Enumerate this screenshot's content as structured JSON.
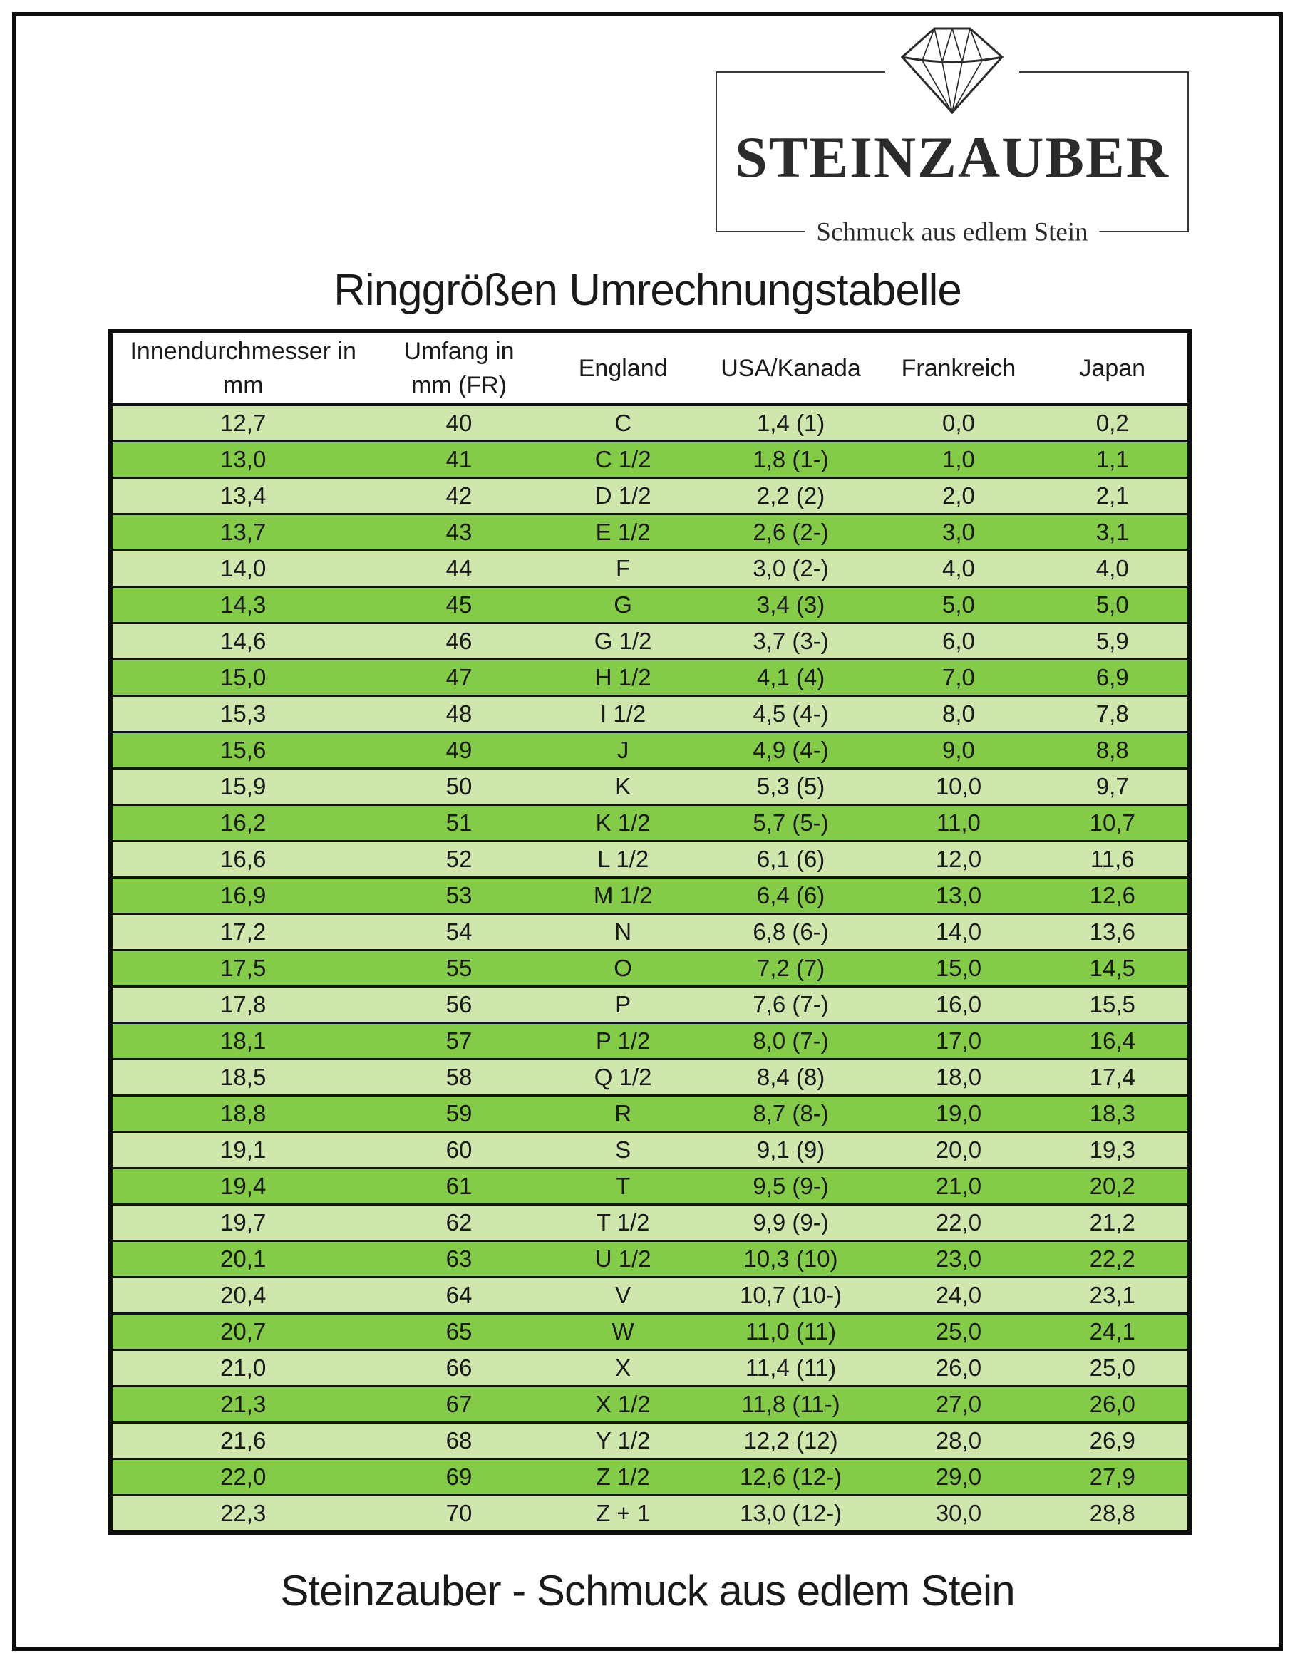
{
  "logo": {
    "brand": "STEINZAUBER",
    "tagline": "Schmuck aus edlem Stein"
  },
  "page": {
    "title": "Ringgrößen Umrechnungstabelle",
    "footer": "Steinzauber - Schmuck aus edlem Stein"
  },
  "colors": {
    "row_light": "#cfe6ad",
    "row_dark": "#84cb48",
    "table_border": "#0e0e0e"
  },
  "table": {
    "headers": [
      {
        "line1": "Innendurchmesser in",
        "line2": "mm"
      },
      {
        "line1": "Umfang in",
        "line2": "mm (FR)"
      },
      {
        "line1": "England"
      },
      {
        "line1": "USA/Kanada"
      },
      {
        "line1": "Frankreich"
      },
      {
        "line1": "Japan"
      }
    ],
    "rows": [
      [
        "12,7",
        "40",
        "C",
        "1,4 (1)",
        "0,0",
        "0,2"
      ],
      [
        "13,0",
        "41",
        "C 1/2",
        "1,8 (1-)",
        "1,0",
        "1,1"
      ],
      [
        "13,4",
        "42",
        "D 1/2",
        "2,2 (2)",
        "2,0",
        "2,1"
      ],
      [
        "13,7",
        "43",
        "E 1/2",
        "2,6 (2-)",
        "3,0",
        "3,1"
      ],
      [
        "14,0",
        "44",
        "F",
        "3,0 (2-)",
        "4,0",
        "4,0"
      ],
      [
        "14,3",
        "45",
        "G",
        "3,4 (3)",
        "5,0",
        "5,0"
      ],
      [
        "14,6",
        "46",
        "G 1/2",
        "3,7 (3-)",
        "6,0",
        "5,9"
      ],
      [
        "15,0",
        "47",
        "H 1/2",
        "4,1 (4)",
        "7,0",
        "6,9"
      ],
      [
        "15,3",
        "48",
        "I 1/2",
        "4,5 (4-)",
        "8,0",
        "7,8"
      ],
      [
        "15,6",
        "49",
        "J",
        "4,9 (4-)",
        "9,0",
        "8,8"
      ],
      [
        "15,9",
        "50",
        "K",
        "5,3 (5)",
        "10,0",
        "9,7"
      ],
      [
        "16,2",
        "51",
        "K 1/2",
        "5,7 (5-)",
        "11,0",
        "10,7"
      ],
      [
        "16,6",
        "52",
        "L 1/2",
        "6,1 (6)",
        "12,0",
        "11,6"
      ],
      [
        "16,9",
        "53",
        "M 1/2",
        "6,4 (6)",
        "13,0",
        "12,6"
      ],
      [
        "17,2",
        "54",
        "N",
        "6,8 (6-)",
        "14,0",
        "13,6"
      ],
      [
        "17,5",
        "55",
        "O",
        "7,2 (7)",
        "15,0",
        "14,5"
      ],
      [
        "17,8",
        "56",
        "P",
        "7,6 (7-)",
        "16,0",
        "15,5"
      ],
      [
        "18,1",
        "57",
        "P 1/2",
        "8,0 (7-)",
        "17,0",
        "16,4"
      ],
      [
        "18,5",
        "58",
        "Q 1/2",
        "8,4 (8)",
        "18,0",
        "17,4"
      ],
      [
        "18,8",
        "59",
        "R",
        "8,7 (8-)",
        "19,0",
        "18,3"
      ],
      [
        "19,1",
        "60",
        "S",
        "9,1 (9)",
        "20,0",
        "19,3"
      ],
      [
        "19,4",
        "61",
        "T",
        "9,5 (9-)",
        "21,0",
        "20,2"
      ],
      [
        "19,7",
        "62",
        "T 1/2",
        "9,9 (9-)",
        "22,0",
        "21,2"
      ],
      [
        "20,1",
        "63",
        "U 1/2",
        "10,3 (10)",
        "23,0",
        "22,2"
      ],
      [
        "20,4",
        "64",
        "V",
        "10,7 (10-)",
        "24,0",
        "23,1"
      ],
      [
        "20,7",
        "65",
        "W",
        "11,0 (11)",
        "25,0",
        "24,1"
      ],
      [
        "21,0",
        "66",
        "X",
        "11,4 (11)",
        "26,0",
        "25,0"
      ],
      [
        "21,3",
        "67",
        "X 1/2",
        "11,8 (11-)",
        "27,0",
        "26,0"
      ],
      [
        "21,6",
        "68",
        "Y 1/2",
        "12,2 (12)",
        "28,0",
        "26,9"
      ],
      [
        "22,0",
        "69",
        "Z 1/2",
        "12,6 (12-)",
        "29,0",
        "27,9"
      ],
      [
        "22,3",
        "70",
        "Z + 1",
        "13,0 (12-)",
        "30,0",
        "28,8"
      ]
    ]
  }
}
